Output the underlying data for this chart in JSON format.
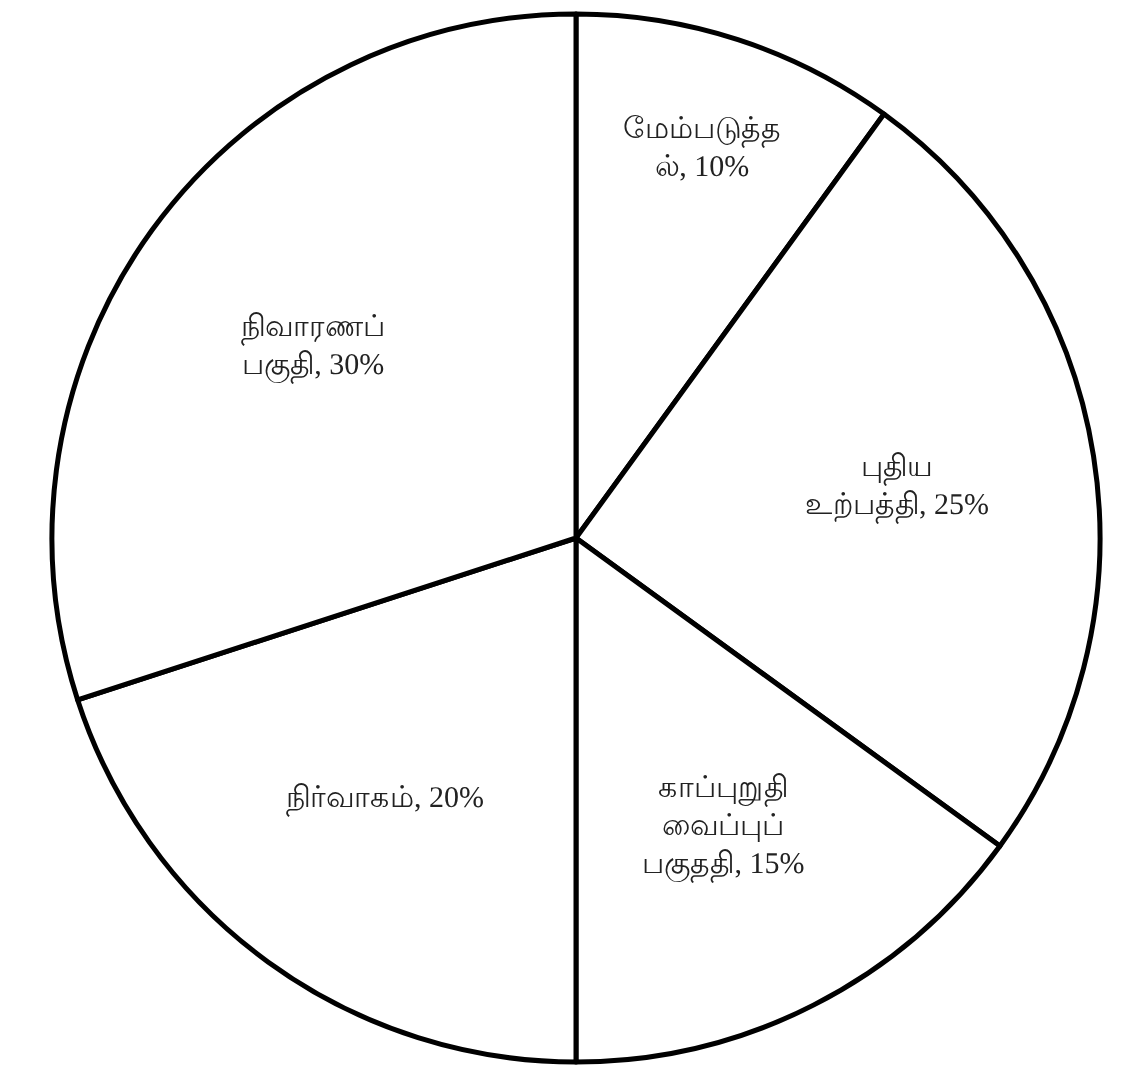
{
  "chart_data": {
    "type": "pie",
    "categories": [
      "மேம்படுத்தல்",
      "புதிய உற்பத்தி",
      "காப்புறுதி வைப்புப் பகுததி",
      "நிர்வாகம்",
      "நிவாரணப் பகுதி"
    ],
    "values": [
      10,
      25,
      15,
      20,
      30
    ],
    "value_labels": [
      "10%",
      "25%",
      "15%",
      "20%",
      "30%"
    ],
    "colors": [
      "#ffffff",
      "#ffffff",
      "#ffffff",
      "#ffffff",
      "#ffffff"
    ]
  }
}
